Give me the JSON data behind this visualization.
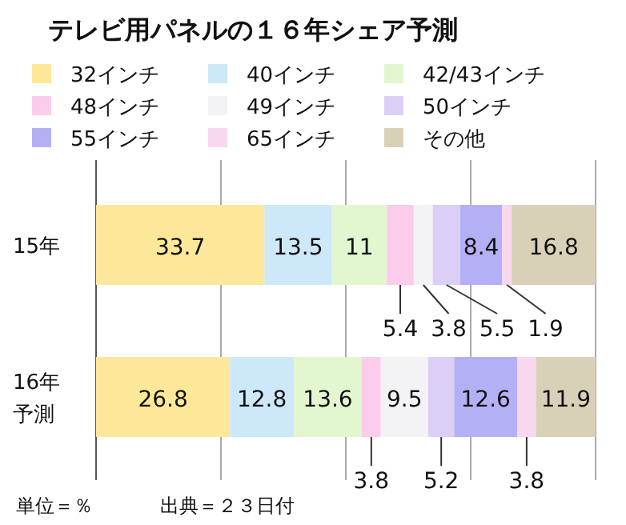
{
  "chart_data": {
    "type": "bar",
    "orientation": "horizontal",
    "stacked": true,
    "title": "テレビ用パネルの１６年シェア予測",
    "categories": [
      "15年",
      "16年予測"
    ],
    "series": [
      {
        "name": "32インチ",
        "color": "#fde89a",
        "values": [
          33.7,
          26.8
        ]
      },
      {
        "name": "40インチ",
        "color": "#cde8f8",
        "values": [
          13.5,
          12.8
        ]
      },
      {
        "name": "42/43インチ",
        "color": "#e2f7cf",
        "values": [
          11,
          13.6
        ]
      },
      {
        "name": "48インチ",
        "color": "#fbcdea",
        "values": [
          5.4,
          3.8
        ]
      },
      {
        "name": "49インチ",
        "color": "#f3f3f5",
        "values": [
          3.8,
          9.5
        ]
      },
      {
        "name": "50インチ",
        "color": "#dccff5",
        "values": [
          5.5,
          5.2
        ]
      },
      {
        "name": "55インチ",
        "color": "#b4b0f5",
        "values": [
          8.4,
          12.6
        ]
      },
      {
        "name": "65インチ",
        "color": "#f8d8ec",
        "values": [
          1.9,
          3.8
        ]
      },
      {
        "name": "その他",
        "color": "#d8d1b8",
        "values": [
          16.8,
          11.9
        ]
      }
    ],
    "xlim": [
      0,
      100
    ],
    "xticks": [
      {
        "value": 0,
        "label": null
      },
      {
        "value": 25,
        "label": null
      },
      {
        "value": 50,
        "label": null
      },
      {
        "value": 75,
        "label": null
      },
      {
        "value": 100,
        "label": null
      }
    ],
    "grid": "x",
    "tick_labels": "y",
    "data_labels": true,
    "legend": "top",
    "annotations": [
      "単位＝％",
      "出典＝２３日付"
    ]
  }
}
